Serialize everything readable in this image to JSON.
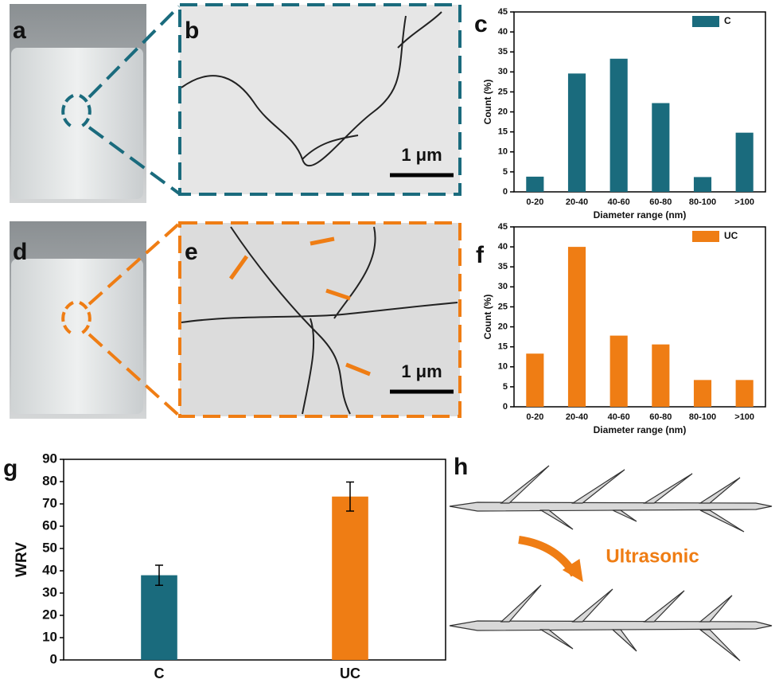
{
  "panel_labels": [
    "a",
    "b",
    "c",
    "d",
    "e",
    "f",
    "g",
    "h"
  ],
  "scale_bars": [
    "1 μm",
    "1 μm"
  ],
  "annotation": "Ultrasonic",
  "chart_data": [
    {
      "type": "bar",
      "categories": [
        "0-20",
        "20-40",
        "40-60",
        "60-80",
        "80-100",
        ">100"
      ],
      "series": [
        {
          "name": "C",
          "color": "#1a6b7d",
          "values": [
            3.8,
            29.6,
            33.3,
            22.2,
            3.7,
            14.8
          ]
        }
      ],
      "x_label": "Diameter range (nm)",
      "y_label": "Count (%)",
      "ylim": [
        0,
        45
      ],
      "yticks": [
        0,
        5,
        10,
        15,
        20,
        25,
        30,
        35,
        40,
        45
      ],
      "legend": "upper right"
    },
    {
      "type": "bar",
      "categories": [
        "0-20",
        "20-40",
        "40-60",
        "60-80",
        "80-100",
        ">100"
      ],
      "series": [
        {
          "name": "UC",
          "color": "#ef7d14",
          "values": [
            13.3,
            40,
            17.8,
            15.6,
            6.7,
            6.7
          ]
        }
      ],
      "x_label": "Diameter range (nm)",
      "y_label": "Count (%)",
      "ylim": [
        0,
        45
      ],
      "yticks": [
        0,
        5,
        10,
        15,
        20,
        25,
        30,
        35,
        40,
        45
      ],
      "legend": "upper right"
    },
    {
      "type": "errorbar",
      "categories": [
        "C",
        "UC"
      ],
      "values": [
        38,
        73.3
      ],
      "errors": [
        4.5,
        6.5
      ],
      "colors": [
        "#1a6b7d",
        "#ef7d14"
      ],
      "y_label": "WRV",
      "ylim": [
        0,
        90
      ],
      "yticks": [
        0,
        10,
        20,
        30,
        40,
        50,
        60,
        70,
        80,
        90
      ]
    }
  ]
}
